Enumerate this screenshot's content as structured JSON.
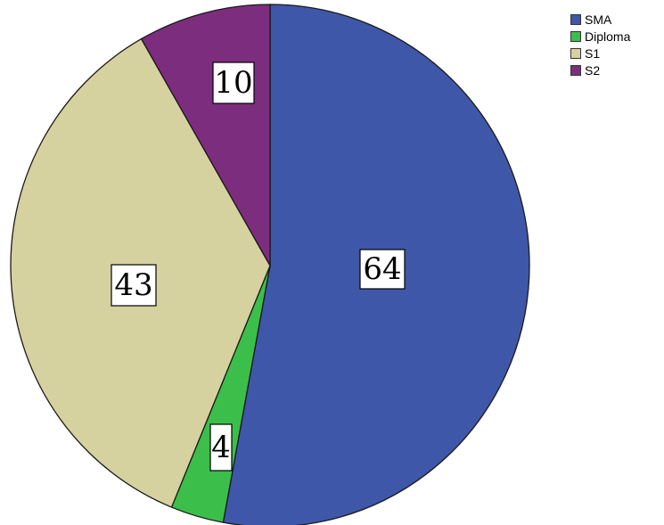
{
  "chart_data": {
    "type": "pie",
    "title": "",
    "start_angle_deg": 0,
    "direction": "clockwise",
    "slices": [
      {
        "label": "SMA",
        "value": 64,
        "data_label": "64",
        "color": "#3f57a8"
      },
      {
        "label": "Diploma",
        "value": 4,
        "data_label": "4",
        "color": "#3bbf4a"
      },
      {
        "label": "S1",
        "value": 43,
        "data_label": "43",
        "color": "#d6d2a0"
      },
      {
        "label": "S2",
        "value": 10,
        "data_label": "10",
        "color": "#7d2d7e"
      }
    ],
    "legend": {
      "placement": "top-right",
      "entries": [
        "SMA",
        "Diploma",
        "S1",
        "S2"
      ]
    }
  }
}
